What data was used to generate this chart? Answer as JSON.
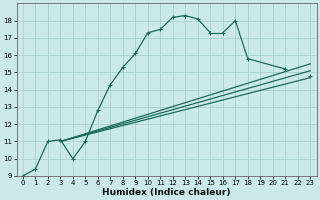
{
  "xlabel": "Humidex (Indice chaleur)",
  "ylabel": "",
  "background_color": "#cce9e9",
  "grid_color": "#aad0d0",
  "line_color": "#1a6b5a",
  "xlim": [
    -0.5,
    23.5
  ],
  "ylim": [
    9,
    19
  ],
  "xticks": [
    0,
    1,
    2,
    3,
    4,
    5,
    6,
    7,
    8,
    9,
    10,
    11,
    12,
    13,
    14,
    15,
    16,
    17,
    18,
    19,
    20,
    21,
    22,
    23
  ],
  "yticks": [
    9,
    10,
    11,
    12,
    13,
    14,
    15,
    16,
    17,
    18
  ],
  "main_series": {
    "x": [
      0,
      1,
      2,
      3,
      4,
      5,
      6,
      7,
      8,
      9,
      10,
      11,
      12,
      13,
      14,
      15,
      16,
      17,
      18,
      21,
      22,
      23
    ],
    "y": [
      9,
      9.4,
      11,
      11.1,
      10,
      11,
      12.8,
      14.3,
      15.3,
      16.1,
      17.3,
      17.5,
      18.2,
      18.3,
      18.1,
      17.3,
      17.3,
      18.0,
      15.8,
      15.2,
      null,
      14.8
    ]
  },
  "trend_lines": [
    {
      "x": [
        3,
        23
      ],
      "y": [
        11,
        15.1
      ]
    },
    {
      "x": [
        3,
        23
      ],
      "y": [
        11,
        15.5
      ]
    },
    {
      "x": [
        3,
        23
      ],
      "y": [
        11,
        14.7
      ]
    }
  ]
}
